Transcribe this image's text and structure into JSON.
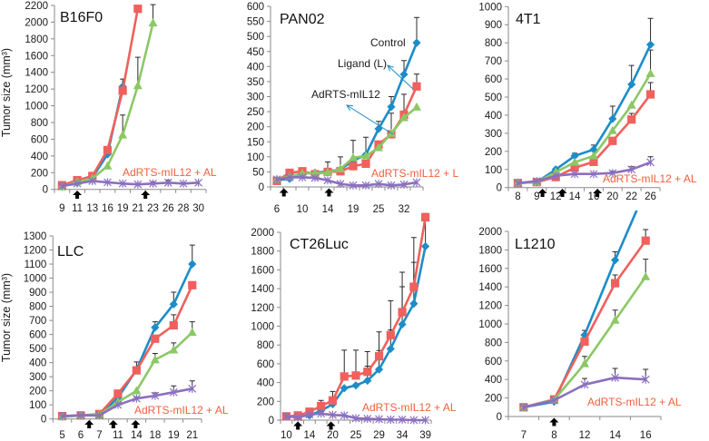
{
  "chart_data": [
    {
      "type": "line",
      "title": "B16F0",
      "xlabel": "",
      "ylabel": "Tumor size (mm³)",
      "categories": [
        "9",
        "11",
        "13",
        "16",
        "19",
        "21",
        "23",
        "26",
        "28",
        "30"
      ],
      "ylim": [
        0,
        2200
      ],
      "yticks": [
        0,
        200,
        400,
        600,
        800,
        1000,
        1200,
        1400,
        1600,
        1800,
        2000,
        2200
      ],
      "grid": false,
      "legend": "none",
      "treatment_arrows_at_category_index": [
        1,
        5.5
      ],
      "series": [
        {
          "name": "Control",
          "color": "#1C8DC8",
          "marker": "diamond",
          "values": [
            40,
            80,
            140,
            420,
            1230
          ],
          "error_upper": [
            null,
            null,
            null,
            null,
            null
          ]
        },
        {
          "name": "Ligand (L)",
          "color": "#F0605D",
          "marker": "square",
          "values": [
            50,
            110,
            160,
            470,
            1180,
            2160
          ],
          "error_upper": [
            null,
            null,
            null,
            null,
            1320,
            null
          ]
        },
        {
          "name": "AdRTS-mIL12",
          "color": "#8CC866",
          "marker": "triangle",
          "values": [
            30,
            90,
            130,
            280,
            650,
            1240,
            1990
          ],
          "error_upper": [
            null,
            null,
            null,
            null,
            890,
            1580,
            2210
          ]
        },
        {
          "name": "AdRTS-mIL12 + AL",
          "color": "#8B6FC0",
          "marker": "asterisk",
          "values": [
            40,
            70,
            100,
            85,
            70,
            60,
            70,
            80,
            70,
            80
          ],
          "error_upper": [
            null,
            null,
            null,
            null,
            null,
            null,
            90,
            110,
            null,
            null
          ]
        }
      ],
      "annotations": [
        {
          "text": "AdRTS-mIL12 + AL",
          "color": "#F0603C",
          "refers_to": "AdRTS-mIL12 + AL"
        }
      ]
    },
    {
      "type": "line",
      "title": "PAN02",
      "xlabel": "",
      "ylabel": "",
      "categories": [
        "6",
        "",
        "10",
        "",
        "14",
        "",
        "19",
        "",
        "25",
        "",
        "32",
        ""
      ],
      "ylim": [
        0,
        600
      ],
      "yticks": [
        0,
        50,
        100,
        150,
        200,
        250,
        300,
        350,
        400,
        450,
        500,
        550,
        600
      ],
      "grid": false,
      "legend": "none",
      "treatment_arrows_at_category_index": [
        0.55,
        4.1
      ],
      "series": [
        {
          "name": "Control",
          "color": "#1C8DC8",
          "marker": "diamond",
          "values": [
            22,
            27,
            45,
            47,
            52,
            58,
            87,
            107,
            193,
            266,
            374,
            479
          ],
          "error_upper": [
            null,
            null,
            null,
            null,
            null,
            null,
            null,
            null,
            218,
            300,
            420,
            563
          ]
        },
        {
          "name": "Ligand (L)",
          "color": "#F0605D",
          "marker": "square",
          "values": [
            20,
            47,
            52,
            42,
            50,
            52,
            69,
            77,
            141,
            175,
            240,
            334
          ],
          "error_upper": [
            null,
            null,
            null,
            null,
            null,
            null,
            null,
            null,
            null,
            245,
            308,
            375
          ]
        },
        {
          "name": "AdRTS-mIL12",
          "color": "#8CC866",
          "marker": "triangle",
          "values": [
            25,
            35,
            45,
            45,
            48,
            60,
            97,
            103,
            130,
            178,
            230,
            265
          ],
          "error_upper": [
            null,
            null,
            null,
            null,
            83,
            100,
            155,
            165,
            null,
            null,
            null,
            null
          ]
        },
        {
          "name": "AdRTS-mIL12 + L",
          "color": "#8B6FC0",
          "marker": "asterisk",
          "values": [
            25,
            32,
            32,
            30,
            22,
            10,
            5,
            5,
            10,
            5,
            8,
            15
          ],
          "error_upper": [
            null,
            null,
            null,
            null,
            null,
            null,
            null,
            null,
            null,
            null,
            null,
            null
          ]
        }
      ],
      "annotations": [
        {
          "text": "Control",
          "color": "#1a1a1a",
          "refers_to": "Control"
        },
        {
          "text": "Ligand (L)",
          "color": "#1a1a1a",
          "refers_to": "Ligand (L)",
          "arrow_color": "#1C8DC8"
        },
        {
          "text": "AdRTS-mIL12",
          "color": "#1a1a1a",
          "refers_to": "AdRTS-mIL12",
          "arrow_color": "#1C8DC8"
        },
        {
          "text": "AdRTS-mIL12 + L",
          "color": "#F0603C",
          "refers_to": "AdRTS-mIL12 + L"
        }
      ]
    },
    {
      "type": "line",
      "title": "4T1",
      "xlabel": "",
      "ylabel": "",
      "categories": [
        "8",
        "9",
        "12",
        "14",
        "16",
        "20",
        "22",
        "26"
      ],
      "ylim": [
        0,
        1000
      ],
      "yticks": [
        0,
        100,
        200,
        300,
        400,
        500,
        600,
        700,
        800,
        900,
        1000
      ],
      "grid": false,
      "legend": "none",
      "treatment_arrows_at_category_index": [
        1.3,
        2.35,
        4.2
      ],
      "series": [
        {
          "name": "Control",
          "color": "#1C8DC8",
          "marker": "diamond",
          "values": [
            25,
            30,
            100,
            175,
            210,
            380,
            570,
            790
          ],
          "error_upper": [
            null,
            null,
            null,
            190,
            235,
            450,
            675,
            935
          ]
        },
        {
          "name": "Ligand (L)",
          "color": "#F0605D",
          "marker": "square",
          "values": [
            25,
            30,
            58,
            110,
            142,
            258,
            376,
            515
          ],
          "error_upper": [
            null,
            null,
            null,
            null,
            null,
            null,
            410,
            580
          ]
        },
        {
          "name": "AdRTS-mIL12",
          "color": "#8CC866",
          "marker": "triangle",
          "values": [
            25,
            30,
            85,
            140,
            175,
            315,
            455,
            630
          ],
          "error_upper": [
            null,
            null,
            null,
            null,
            null,
            null,
            null,
            760
          ]
        },
        {
          "name": "AdRTS-mIL12 + AL",
          "color": "#8B6FC0",
          "marker": "asterisk",
          "values": [
            25,
            35,
            65,
            75,
            75,
            80,
            100,
            140
          ],
          "error_upper": [
            null,
            null,
            null,
            null,
            null,
            90,
            115,
            170
          ]
        }
      ],
      "annotations": [
        {
          "text": "AdRTS-mIL12 + AL",
          "color": "#F0603C",
          "refers_to": "AdRTS-mIL12 + AL"
        }
      ]
    },
    {
      "type": "line",
      "title": "LLC",
      "xlabel": "",
      "ylabel": "Tumor size (mm³)",
      "categories": [
        "5",
        "6",
        "7",
        "11",
        "14",
        "18",
        "19",
        "21"
      ],
      "ylim": [
        0,
        1300
      ],
      "yticks": [
        0,
        100,
        200,
        300,
        400,
        500,
        600,
        700,
        800,
        900,
        1000,
        1100,
        1200,
        1300
      ],
      "grid": false,
      "legend": "none",
      "treatment_arrows_at_category_index": [
        1.45,
        2.75,
        3.95
      ],
      "series": [
        {
          "name": "Control",
          "color": "#1C8DC8",
          "marker": "diamond",
          "values": [
            20,
            25,
            30,
            150,
            350,
            650,
            815,
            1100
          ],
          "error_upper": [
            null,
            null,
            null,
            null,
            405,
            690,
            900,
            1235
          ]
        },
        {
          "name": "Ligand (L)",
          "color": "#F0605D",
          "marker": "square",
          "values": [
            20,
            25,
            35,
            180,
            345,
            570,
            665,
            950
          ],
          "error_upper": [
            null,
            null,
            null,
            null,
            null,
            null,
            740,
            null
          ]
        },
        {
          "name": "AdRTS-mIL12",
          "color": "#8CC866",
          "marker": "triangle",
          "values": [
            15,
            25,
            30,
            120,
            200,
            420,
            490,
            615
          ],
          "error_upper": [
            null,
            null,
            null,
            null,
            null,
            465,
            540,
            690
          ]
        },
        {
          "name": "AdRTS-mIL12 + AL",
          "color": "#8B6FC0",
          "marker": "asterisk",
          "values": [
            20,
            25,
            25,
            100,
            145,
            165,
            190,
            215
          ],
          "error_upper": [
            null,
            null,
            null,
            null,
            155,
            185,
            235,
            270
          ]
        }
      ],
      "annotations": [
        {
          "text": "AdRTS-mIL12 + AL",
          "color": "#F0603C",
          "refers_to": "AdRTS-mIL12 + AL"
        }
      ]
    },
    {
      "type": "line",
      "title": "CT26Luc",
      "xlabel": "",
      "ylabel": "",
      "categories": [
        "10",
        "",
        "14",
        "",
        "20",
        "",
        "25",
        "",
        "29",
        "",
        "34",
        "",
        "39"
      ],
      "ylim": [
        0,
        2000
      ],
      "yticks": [
        0,
        200,
        400,
        600,
        800,
        1000,
        1200,
        1400,
        1600,
        1800,
        2000
      ],
      "grid": false,
      "legend": "none",
      "treatment_arrows_at_category_index": [
        1,
        3.85
      ],
      "series": [
        {
          "name": "Control",
          "color": "#1C8DC8",
          "marker": "diamond",
          "values": [
            40,
            40,
            50,
            100,
            170,
            340,
            370,
            420,
            540,
            760,
            1020,
            1240,
            1850
          ],
          "error_upper": [
            null,
            null,
            null,
            null,
            null,
            null,
            null,
            575,
            742,
            960,
            1420,
            1680,
            2200
          ]
        },
        {
          "name": "Ligand (L)",
          "color": "#F0605D",
          "marker": "square",
          "values": [
            40,
            50,
            90,
            150,
            210,
            465,
            475,
            515,
            680,
            905,
            1150,
            1420,
            2160
          ],
          "error_upper": [
            null,
            null,
            null,
            210,
            306,
            745,
            745,
            730,
            940,
            1270,
            1575,
            1945,
            null
          ]
        },
        {
          "name": "AdRTS-mIL12 + AL",
          "color": "#8B6FC0",
          "marker": "asterisk",
          "values": [
            40,
            30,
            60,
            70,
            55,
            50,
            20,
            15,
            10,
            5,
            5,
            0,
            0
          ],
          "error_upper": [
            null,
            null,
            null,
            null,
            null,
            null,
            null,
            null,
            null,
            null,
            null,
            null,
            null
          ]
        }
      ],
      "annotations": [
        {
          "text": "AdRTS-mIL12 + AL",
          "color": "#F0603C",
          "refers_to": "AdRTS-mIL12 + AL"
        }
      ]
    },
    {
      "type": "line",
      "title": "L1210",
      "xlabel": "",
      "ylabel": "",
      "categories": [
        "7",
        "8",
        "12",
        "14",
        "16"
      ],
      "ylim": [
        0,
        2000
      ],
      "yticks": [
        0,
        200,
        400,
        600,
        800,
        1000,
        1200,
        1400,
        1600,
        1800,
        2000
      ],
      "grid": false,
      "legend": "none",
      "treatment_arrows_at_category_index": [
        1
      ],
      "series": [
        {
          "name": "Control",
          "color": "#1C8DC8",
          "marker": "diamond",
          "values": [
            100,
            160,
            880,
            1690,
            2450
          ],
          "error_upper": [
            null,
            null,
            930,
            1780,
            null
          ]
        },
        {
          "name": "Ligand (L)",
          "color": "#F0605D",
          "marker": "square",
          "values": [
            100,
            185,
            810,
            1440,
            1900
          ],
          "error_upper": [
            null,
            null,
            null,
            1530,
            2020
          ]
        },
        {
          "name": "AdRTS-mIL12",
          "color": "#8CC866",
          "marker": "triangle",
          "values": [
            100,
            180,
            570,
            1040,
            1510
          ],
          "error_upper": [
            null,
            null,
            650,
            1150,
            1700
          ]
        },
        {
          "name": "AdRTS-mIL12 + AL",
          "color": "#8B6FC0",
          "marker": "asterisk",
          "values": [
            100,
            175,
            345,
            420,
            400
          ],
          "error_upper": [
            null,
            null,
            410,
            520,
            510
          ]
        }
      ],
      "annotations": [
        {
          "text": "AdRTS-mIL12 + AL",
          "color": "#F0603C",
          "refers_to": "AdRTS-mIL12 + AL"
        }
      ]
    }
  ]
}
